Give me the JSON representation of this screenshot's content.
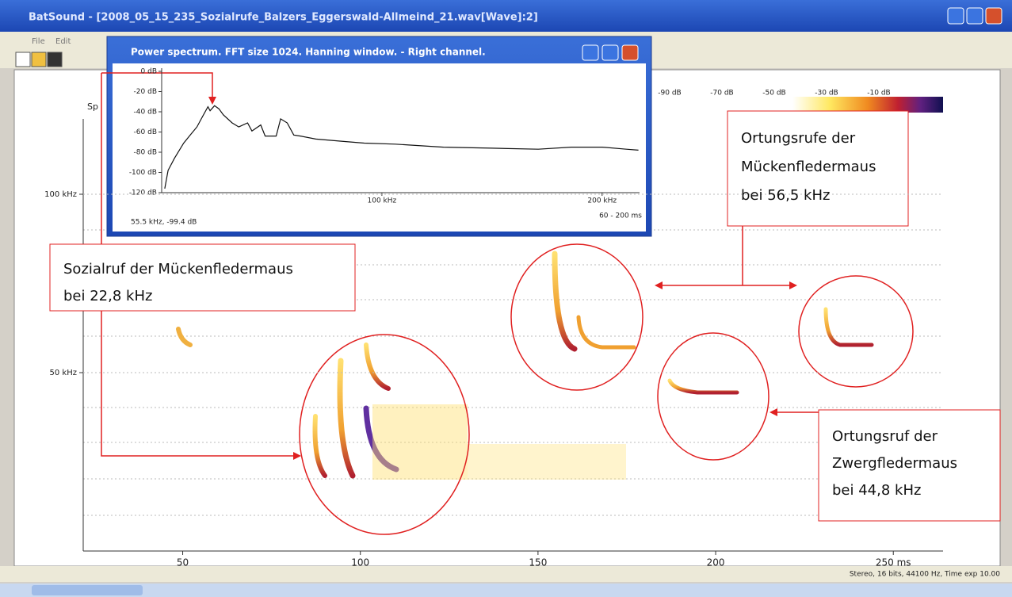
{
  "window": {
    "title": "BatSound - [2008_05_15_235_Sozialrufe_Balzers_Eggerswald-Allmeind_21.wav[Wave]:2]",
    "menu": [
      "File",
      "Edit"
    ]
  },
  "power_spectrum": {
    "title": "Power spectrum. FFT size 1024. Hanning window. - Right channel.",
    "x": [
      1.4,
      2.9,
      5.8,
      10,
      13,
      16,
      18,
      21,
      22,
      24,
      26,
      28,
      32,
      35,
      39,
      41,
      45,
      47,
      52,
      54,
      57,
      60,
      63,
      70,
      81,
      92,
      106,
      128,
      150,
      171,
      186,
      200,
      211,
      216.5
    ],
    "values": [
      -116,
      -98,
      -86,
      -71,
      -63,
      -55,
      -47,
      -35,
      -39,
      -34,
      -37,
      -43,
      -51,
      -55,
      -51,
      -59,
      -53,
      -64,
      -64,
      -47,
      -51,
      -63,
      -64,
      -67,
      -69,
      -71,
      -72,
      -75,
      -76,
      -77,
      -75,
      -75,
      -77,
      -78
    ],
    "xlim": [
      0,
      217
    ],
    "ylim": [
      -120,
      0
    ],
    "yticks": [
      {
        "value": 0,
        "label": "0 dB"
      },
      {
        "value": -20,
        "label": "-20 dB"
      },
      {
        "value": -40,
        "label": "-40 dB"
      },
      {
        "value": -60,
        "label": "-60 dB"
      },
      {
        "value": -80,
        "label": "-80 dB"
      },
      {
        "value": -100,
        "label": "-100 dB"
      },
      {
        "value": -120,
        "label": "-120 dB"
      }
    ],
    "xticks": [
      {
        "value": 100,
        "label": "100 kHz"
      },
      {
        "value": 200,
        "label": "200 kHz"
      }
    ],
    "cursor_readout": "55.5 kHz, -99.4 dB",
    "time_range": "60 - 200 ms"
  },
  "spectrogram": {
    "label": "Sp",
    "xlim": [
      22,
      264
    ],
    "ylim": [
      0,
      130
    ],
    "xticks": [
      50,
      100,
      150,
      200,
      {
        "value": 250,
        "label": "250 ms"
      }
    ],
    "yticks": [
      {
        "value": 100,
        "label": "100 kHz"
      },
      {
        "value": 50,
        "label": "50 kHz"
      }
    ],
    "colorbar_labels": [
      "-90 dB",
      "-70 dB",
      "-50 dB",
      "-30 dB",
      "-10 dB"
    ]
  },
  "status": "Stereo, 16 bits, 44100 Hz, Time exp 10.00",
  "annotations": [
    {
      "lines": [
        "Ortungsrufe der",
        "Mückenfledermaus",
        "bei 56,5 kHz"
      ]
    },
    {
      "lines": [
        "Sozialruf der Mückenfledermaus",
        "bei 22,8 kHz"
      ]
    },
    {
      "lines": [
        "Ortungsruf der",
        "Zwergfledermaus",
        "bei 44,8 kHz"
      ]
    }
  ]
}
